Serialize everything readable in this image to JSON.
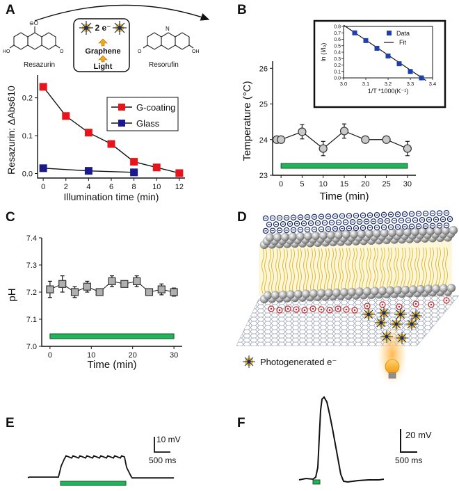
{
  "panel_labels": {
    "a": "A",
    "b": "B",
    "c": "C",
    "d": "D",
    "e": "E",
    "f": "F"
  },
  "scheme": {
    "left_label": "Resazurin",
    "right_label": "Resorufin",
    "electrons": "2 e⁻",
    "graphene": "Graphene",
    "light": "Light"
  },
  "chart_data": [
    {
      "id": "A",
      "type": "line",
      "xlabel": "Illumination  time (min)",
      "ylabel": "Resazurin: ΔAbs610",
      "x": [
        0,
        2,
        4,
        6,
        8,
        10,
        12
      ],
      "xticks": [
        "0",
        "2",
        "4",
        "6",
        "8",
        "10",
        "12"
      ],
      "yticks": [
        "0.0",
        "0.1",
        "0.2"
      ],
      "xlim": [
        -0.5,
        12.5
      ],
      "ylim": [
        -0.012,
        0.26
      ],
      "series": [
        {
          "name": "G-coating",
          "color": "#e8141c",
          "x": [
            0,
            2,
            4,
            6,
            8,
            10,
            12
          ],
          "values": [
            0.229,
            0.152,
            0.108,
            0.078,
            0.031,
            0.016,
            0.001
          ]
        },
        {
          "name": "Glass",
          "color": "#1a1a8a",
          "x": [
            0,
            4,
            8
          ],
          "values": [
            0.014,
            0.007,
            0.003
          ]
        }
      ],
      "legend": "upper-right"
    },
    {
      "id": "B",
      "type": "scatter",
      "xlabel": "Time (min)",
      "ylabel": "Temperature (°C)",
      "x": [
        -1,
        0,
        5,
        10,
        15,
        20,
        25,
        30
      ],
      "values": [
        24.0,
        24.0,
        24.22,
        23.75,
        24.24,
        24.0,
        24.0,
        23.75
      ],
      "errors": [
        0.04,
        0.04,
        0.2,
        0.2,
        0.2,
        0.05,
        0.05,
        0.2
      ],
      "xticks": [
        "0",
        "5",
        "10",
        "15",
        "20",
        "25",
        "30"
      ],
      "yticks": [
        "23",
        "24",
        "25",
        "26"
      ],
      "xlim": [
        -2,
        32
      ],
      "ylim": [
        23,
        26.2
      ],
      "illumination_bar": [
        0,
        30
      ],
      "inset": {
        "type": "scatter",
        "ylabel": "ln (I/I₀)",
        "xlabel": "1/T *1000(K⁻¹)",
        "x": [
          3.05,
          3.1,
          3.15,
          3.2,
          3.25,
          3.3,
          3.35
        ],
        "values": [
          0.7,
          0.58,
          0.46,
          0.34,
          0.22,
          0.1,
          0.0
        ],
        "fit": [
          [
            3.0,
            0.82
          ],
          [
            3.37,
            -0.04
          ]
        ],
        "xticks": [
          "3.0",
          "3.1",
          "3.2",
          "3.3",
          "3.4"
        ],
        "yticks": [
          "0.0",
          "0.1",
          "0.2",
          "0.3",
          "0.4",
          "0.5",
          "0.6",
          "0.7",
          "0.8"
        ],
        "legend": [
          "Data",
          "Fit"
        ]
      }
    },
    {
      "id": "C",
      "type": "scatter",
      "xlabel": "Time (min)",
      "ylabel": "pH",
      "x": [
        0,
        3,
        6,
        9,
        12,
        15,
        18,
        21,
        24,
        27,
        30
      ],
      "values": [
        7.21,
        7.23,
        7.2,
        7.22,
        7.2,
        7.24,
        7.23,
        7.24,
        7.2,
        7.21,
        7.2
      ],
      "errors": [
        0.03,
        0.03,
        0.02,
        0.02,
        0.01,
        0.02,
        0.01,
        0.02,
        0.01,
        0.02,
        0.015
      ],
      "xticks": [
        "0",
        "10",
        "20",
        "30"
      ],
      "yticks": [
        "7.0",
        "7.1",
        "7.2",
        "7.3",
        "7.4"
      ],
      "xlim": [
        -2,
        32
      ],
      "ylim": [
        7.0,
        7.4
      ],
      "illumination_bar": [
        0,
        30
      ]
    }
  ],
  "panel_d": {
    "legend": "Photogenerated e⁻"
  },
  "panel_e": {
    "scale_v": "10 mV",
    "scale_t": "500 ms"
  },
  "panel_f": {
    "scale_v": "20 mV",
    "scale_t": "500 ms"
  }
}
